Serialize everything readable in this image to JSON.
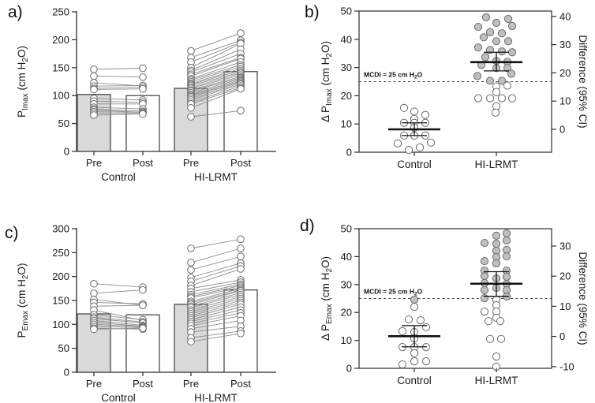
{
  "figure": {
    "colors": {
      "bar_pre_fill": "#d9d9d9",
      "bar_post_fill": "#ffffff",
      "bar_stroke": "#4a4a4a",
      "pair_line": "#8c8c8c",
      "point_open_fill": "#ffffff",
      "point_gray_fill": "#bfbfbf",
      "point_stroke": "#6b6b6b",
      "axis": "#2b2b2b",
      "stat_line": "#111111",
      "threshold_line": "#444444"
    }
  },
  "chart_data": [
    {
      "panel": "a)",
      "type": "paired-bar",
      "ylabel_segments": [
        {
          "t": "P"
        },
        {
          "t": "Imax",
          "sub": true
        },
        {
          "t": " (cm H"
        },
        {
          "t": "2",
          "sub": true
        },
        {
          "t": "O)"
        }
      ],
      "ylim": [
        0,
        250
      ],
      "yticks": [
        0,
        50,
        100,
        150,
        200,
        250
      ],
      "condition_labels": [
        "Pre",
        "Post"
      ],
      "groups": [
        {
          "label": "Control",
          "bar_pre": 102,
          "bar_post": 100,
          "pairs": [
            [
              147,
              149
            ],
            [
              135,
              133
            ],
            [
              123,
              117
            ],
            [
              117,
              118
            ],
            [
              113,
              115
            ],
            [
              111,
              112
            ],
            [
              95,
              92
            ],
            [
              90,
              88
            ],
            [
              85,
              85
            ],
            [
              79,
              76
            ],
            [
              76,
              72
            ],
            [
              74,
              70
            ],
            [
              71,
              70
            ],
            [
              68,
              68
            ],
            [
              65,
              67
            ]
          ]
        },
        {
          "label": "HI-LRMT",
          "bar_pre": 113,
          "bar_post": 143,
          "pairs": [
            [
              180,
              212
            ],
            [
              168,
              199
            ],
            [
              160,
              195
            ],
            [
              150,
              193
            ],
            [
              145,
              183
            ],
            [
              142,
              175
            ],
            [
              138,
              168
            ],
            [
              135,
              166
            ],
            [
              130,
              160
            ],
            [
              128,
              155
            ],
            [
              125,
              152
            ],
            [
              122,
              148
            ],
            [
              120,
              145
            ],
            [
              118,
              142
            ],
            [
              115,
              140
            ],
            [
              113,
              137
            ],
            [
              110,
              134
            ],
            [
              108,
              132
            ],
            [
              105,
              130
            ],
            [
              102,
              128
            ],
            [
              100,
              126
            ],
            [
              98,
              124
            ],
            [
              95,
              122
            ],
            [
              92,
              120
            ],
            [
              88,
              117
            ],
            [
              85,
              114
            ],
            [
              78,
              112
            ],
            [
              62,
              73
            ]
          ]
        }
      ]
    },
    {
      "panel": "b)",
      "type": "dot-diff",
      "ylabel_segments": [
        {
          "t": "Δ P"
        },
        {
          "t": "Imax",
          "sub": true
        },
        {
          "t": " (cm H"
        },
        {
          "t": "2",
          "sub": true
        },
        {
          "t": "O)"
        }
      ],
      "ylim": [
        0,
        50
      ],
      "yticks": [
        0,
        10,
        20,
        30,
        40,
        50
      ],
      "right_axis": {
        "label": "Difference (95% CI)",
        "ticks": [
          {
            "label": "40",
            "at": 48.1
          },
          {
            "label": "30",
            "at": 38.1
          },
          {
            "label": "20",
            "at": 28.1
          },
          {
            "label": "10",
            "at": 18.1
          },
          {
            "label": "0",
            "at": 8.1
          }
        ]
      },
      "threshold": {
        "value": 25,
        "label_segments": [
          {
            "t": "MCDI = 25 cm H"
          },
          {
            "t": "2",
            "sub": true
          },
          {
            "t": "O"
          }
        ]
      },
      "groups": [
        {
          "label": "Control",
          "mean": 8.1,
          "ci": [
            5.9,
            10.4
          ],
          "points": [
            [
              -13,
              15.7,
              0
            ],
            [
              0,
              14.4,
              0
            ],
            [
              14,
              13.2,
              0
            ],
            [
              0,
              11.8,
              0
            ],
            [
              -13,
              10.4,
              0
            ],
            [
              0,
              10.4,
              0
            ],
            [
              14,
              10.4,
              0
            ],
            [
              0,
              8.7,
              0
            ],
            [
              -13,
              5.9,
              0
            ],
            [
              0,
              5.9,
              0
            ],
            [
              14,
              5.9,
              0
            ],
            [
              -21,
              3.1,
              0
            ],
            [
              21,
              3.4,
              0
            ],
            [
              -7,
              0.8,
              0
            ],
            [
              7,
              1.7,
              0
            ]
          ]
        },
        {
          "label": "HI-LRMT",
          "mean": 31.9,
          "ci": [
            28.8,
            35.4
          ],
          "points": [
            [
              -13,
              47.8,
              1
            ],
            [
              15,
              47.2,
              1
            ],
            [
              0,
              45.8,
              1
            ],
            [
              -23,
              44.4,
              1
            ],
            [
              20,
              44.7,
              1
            ],
            [
              -8,
              42.5,
              1
            ],
            [
              7,
              42.1,
              1
            ],
            [
              -16,
              40.7,
              1
            ],
            [
              0,
              39.3,
              1
            ],
            [
              15,
              39.3,
              1
            ],
            [
              -23,
              37.1,
              1
            ],
            [
              -8,
              36.2,
              1
            ],
            [
              7,
              35.7,
              1
            ],
            [
              20,
              35.4,
              1
            ],
            [
              -14,
              33.7,
              1
            ],
            [
              0,
              32.3,
              1
            ],
            [
              14,
              32.0,
              1
            ],
            [
              -19,
              30.9,
              1
            ],
            [
              0,
              29.8,
              1
            ],
            [
              14,
              29.8,
              1
            ],
            [
              19,
              27.8,
              1
            ],
            [
              -24,
              27.0,
              1
            ],
            [
              -8,
              25.3,
              1
            ],
            [
              7,
              25.3,
              1
            ],
            [
              0,
              23.3,
              0
            ],
            [
              14,
              23.6,
              0
            ],
            [
              0,
              21.3,
              0
            ],
            [
              -23,
              19.1,
              0
            ],
            [
              -8,
              19.1,
              0
            ],
            [
              7,
              19.1,
              0
            ],
            [
              20,
              19.1,
              0
            ],
            [
              0,
              16.3,
              0
            ],
            [
              -1,
              14.0,
              0
            ]
          ]
        }
      ]
    },
    {
      "panel": "c)",
      "type": "paired-bar",
      "ylabel_segments": [
        {
          "t": "P"
        },
        {
          "t": "Emax",
          "sub": true
        },
        {
          "t": " (cm H"
        },
        {
          "t": "2",
          "sub": true
        },
        {
          "t": "O)"
        }
      ],
      "ylim": [
        0,
        300
      ],
      "yticks": [
        0,
        50,
        100,
        150,
        200,
        250,
        300
      ],
      "condition_labels": [
        "Pre",
        "Post"
      ],
      "groups": [
        {
          "label": "Control",
          "bar_pre": 122,
          "bar_post": 120,
          "pairs": [
            [
              185,
              178
            ],
            [
              165,
              172
            ],
            [
              152,
              140
            ],
            [
              146,
              143
            ],
            [
              138,
              140
            ],
            [
              130,
              108
            ],
            [
              120,
              110
            ],
            [
              115,
              105
            ],
            [
              112,
              103
            ],
            [
              108,
              98
            ],
            [
              104,
              96
            ],
            [
              100,
              95
            ],
            [
              96,
              93
            ],
            [
              92,
              90
            ],
            [
              90,
              92
            ]
          ]
        },
        {
          "label": "HI-LRMT",
          "bar_pre": 142,
          "bar_post": 172,
          "pairs": [
            [
              259,
              278
            ],
            [
              229,
              259
            ],
            [
              214,
              242
            ],
            [
              198,
              228
            ],
            [
              190,
              222
            ],
            [
              181,
              216
            ],
            [
              175,
              193
            ],
            [
              168,
              188
            ],
            [
              162,
              184
            ],
            [
              158,
              181
            ],
            [
              155,
              178
            ],
            [
              148,
              175
            ],
            [
              145,
              172
            ],
            [
              142,
              170
            ],
            [
              138,
              166
            ],
            [
              135,
              162
            ],
            [
              130,
              158
            ],
            [
              126,
              154
            ],
            [
              122,
              150
            ],
            [
              118,
              146
            ],
            [
              114,
              142
            ],
            [
              110,
              136
            ],
            [
              106,
              130
            ],
            [
              102,
              124
            ],
            [
              97,
              118
            ],
            [
              91,
              108
            ],
            [
              84,
              96
            ],
            [
              72,
              86
            ],
            [
              64,
              81
            ]
          ]
        }
      ]
    },
    {
      "panel": "d)",
      "type": "dot-diff",
      "ylabel_segments": [
        {
          "t": "Δ P"
        },
        {
          "t": "Emax",
          "sub": true
        },
        {
          "t": " (cm H"
        },
        {
          "t": "2",
          "sub": true
        },
        {
          "t": "O)"
        }
      ],
      "ylim": [
        0,
        50
      ],
      "yticks": [
        0,
        10,
        20,
        30,
        40,
        50
      ],
      "right_axis": {
        "label": "Difference (95% CI)",
        "ticks": [
          {
            "label": "30",
            "at": 43.8
          },
          {
            "label": "20",
            "at": 33.0
          },
          {
            "label": "10",
            "at": 22.2
          },
          {
            "label": "0",
            "at": 11.4
          },
          {
            "label": "-10",
            "at": 0.6
          }
        ]
      },
      "threshold": {
        "value": 25,
        "label_segments": [
          {
            "t": "MCDI = 25 cm H"
          },
          {
            "t": "2",
            "sub": true
          },
          {
            "t": "O"
          }
        ]
      },
      "groups": [
        {
          "label": "Control",
          "mean": 11.5,
          "ci": [
            7.7,
            15.3
          ],
          "points": [
            [
              0,
              24.6,
              1
            ],
            [
              0,
              22.0,
              0
            ],
            [
              -7,
              17.5,
              0
            ],
            [
              8,
              17.2,
              0
            ],
            [
              15,
              14.7,
              0
            ],
            [
              -15,
              13.3,
              0
            ],
            [
              0,
              13.0,
              0
            ],
            [
              0,
              10.7,
              0
            ],
            [
              -15,
              7.6,
              0
            ],
            [
              0,
              7.6,
              0
            ],
            [
              15,
              7.6,
              0
            ],
            [
              0,
              5.4,
              0
            ],
            [
              0,
              2.5,
              0
            ],
            [
              15,
              2.5,
              0
            ],
            [
              -15,
              1.4,
              0
            ]
          ]
        },
        {
          "label": "HI-LRMT",
          "mean": 30.3,
          "ci": [
            25.8,
            34.6
          ],
          "points": [
            [
              13,
              48.3,
              1
            ],
            [
              0,
              47.5,
              1
            ],
            [
              13,
              45.8,
              1
            ],
            [
              -15,
              44.9,
              1
            ],
            [
              0,
              44.6,
              1
            ],
            [
              13,
              42.4,
              1
            ],
            [
              0,
              42.1,
              1
            ],
            [
              13,
              40.1,
              1
            ],
            [
              0,
              39.8,
              1
            ],
            [
              -15,
              38.4,
              1
            ],
            [
              0,
              37.6,
              1
            ],
            [
              -15,
              35.0,
              1
            ],
            [
              13,
              35.0,
              1
            ],
            [
              -15,
              33.0,
              1
            ],
            [
              13,
              32.8,
              1
            ],
            [
              0,
              32.2,
              1
            ],
            [
              -15,
              30.5,
              1
            ],
            [
              13,
              30.2,
              1
            ],
            [
              0,
              28.8,
              1
            ],
            [
              -15,
              28.0,
              1
            ],
            [
              13,
              28.0,
              1
            ],
            [
              13,
              25.7,
              1
            ],
            [
              -15,
              25.1,
              1
            ],
            [
              0,
              24.6,
              0
            ],
            [
              0,
              22.6,
              0
            ],
            [
              -15,
              20.3,
              0
            ],
            [
              0,
              20.3,
              0
            ],
            [
              0,
              18.1,
              0
            ],
            [
              -10,
              16.9,
              0
            ],
            [
              5,
              16.9,
              0
            ],
            [
              -8,
              10.5,
              0
            ],
            [
              6,
              10.5,
              0
            ],
            [
              0,
              4.2,
              0
            ],
            [
              0,
              0.6,
              0
            ]
          ]
        }
      ]
    }
  ]
}
